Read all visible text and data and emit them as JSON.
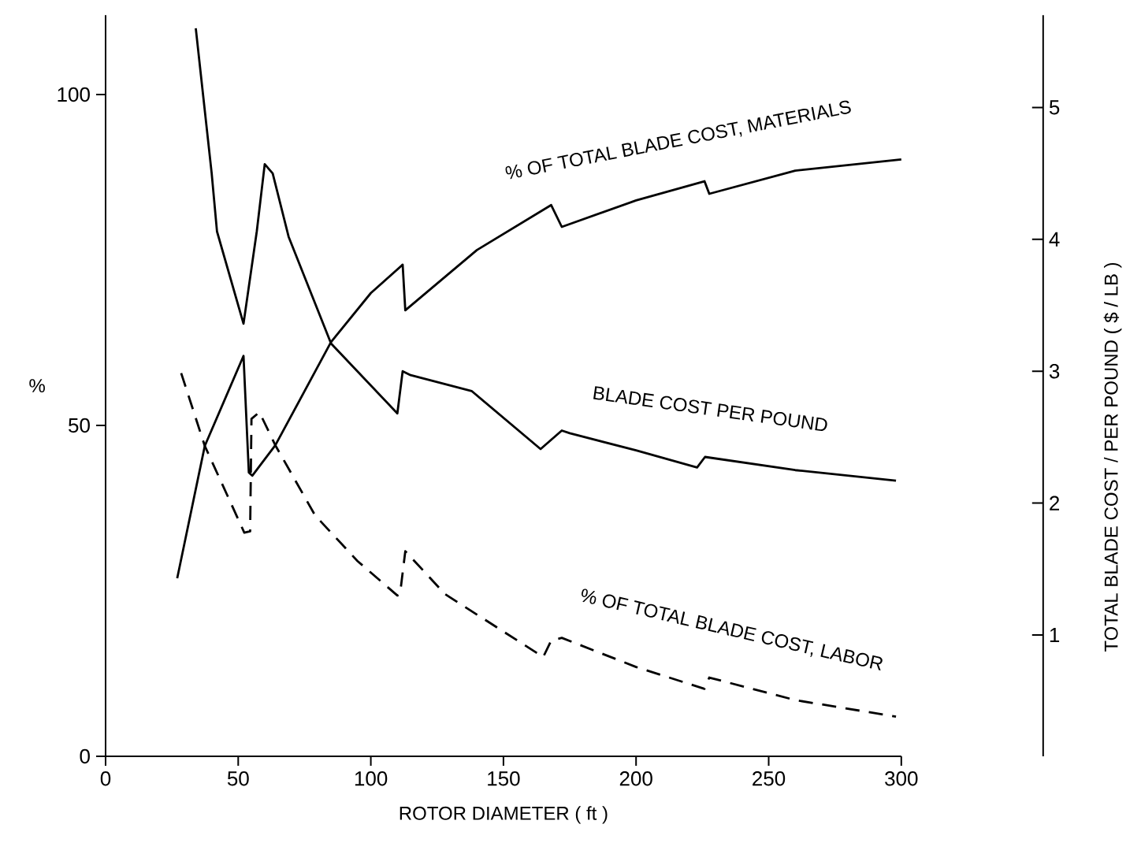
{
  "chart_data": {
    "type": "line",
    "xlabel": "ROTOR DIAMETER ( ft )",
    "ylabel": "%",
    "y2label": "TOTAL BLADE COST / PER POUND ( $ / LB )",
    "xlim": [
      0,
      300
    ],
    "xticks": [
      0,
      50,
      100,
      150,
      200,
      250,
      300
    ],
    "ylim": [
      0,
      112
    ],
    "yticks": [
      0,
      50,
      100
    ],
    "y2lim": [
      0.08,
      5.7
    ],
    "y2ticks": [
      1,
      2,
      3,
      4,
      5
    ],
    "series": [
      {
        "name": "% OF TOTAL BLADE COST, MATERIALS",
        "color": "#000000",
        "line_style": "solid",
        "x": [
          27,
          37.4,
          52,
          54,
          55.3,
          64,
          85,
          100,
          112,
          113,
          140,
          168,
          172,
          200,
          225.8,
          227.6,
          260,
          300
        ],
        "values": [
          26.9,
          46.9,
          60.5,
          42.9,
          42.4,
          47,
          62.6,
          70,
          74.3,
          67.4,
          76.5,
          83.3,
          80,
          84,
          86.9,
          85,
          88.5,
          90.2
        ]
      },
      {
        "name": "BLADE COST PER POUND",
        "color": "#000000",
        "line_style": "solid",
        "axis": "y2",
        "x": [
          34,
          40,
          42,
          52,
          57,
          60,
          63,
          69,
          85,
          110,
          112,
          115,
          138,
          164,
          172,
          175,
          200,
          223,
          226,
          260,
          298
        ],
        "values": [
          5.6,
          4.5,
          4.06,
          3.36,
          4.06,
          4.57,
          4.5,
          4.02,
          3.21,
          2.68,
          3.0,
          2.97,
          2.85,
          2.41,
          2.55,
          2.53,
          2.4,
          2.27,
          2.35,
          2.25,
          2.17
        ]
      },
      {
        "name": "% OF TOTAL BLADE COST, LABOR",
        "color": "#000000",
        "line_style": "dashed",
        "x": [
          28.5,
          37.4,
          52.3,
          54.5,
          55,
          58,
          64,
          79,
          95,
          110,
          111,
          113,
          128,
          165,
          168,
          172,
          200,
          225.8,
          227.6,
          260,
          298
        ],
        "values": [
          57.9,
          46.9,
          33.8,
          34,
          51,
          52,
          47,
          36.4,
          29.5,
          24.3,
          24.5,
          31,
          24.5,
          15,
          17.5,
          17.9,
          13.5,
          10.2,
          11.9,
          8.5,
          6.0
        ]
      }
    ]
  }
}
